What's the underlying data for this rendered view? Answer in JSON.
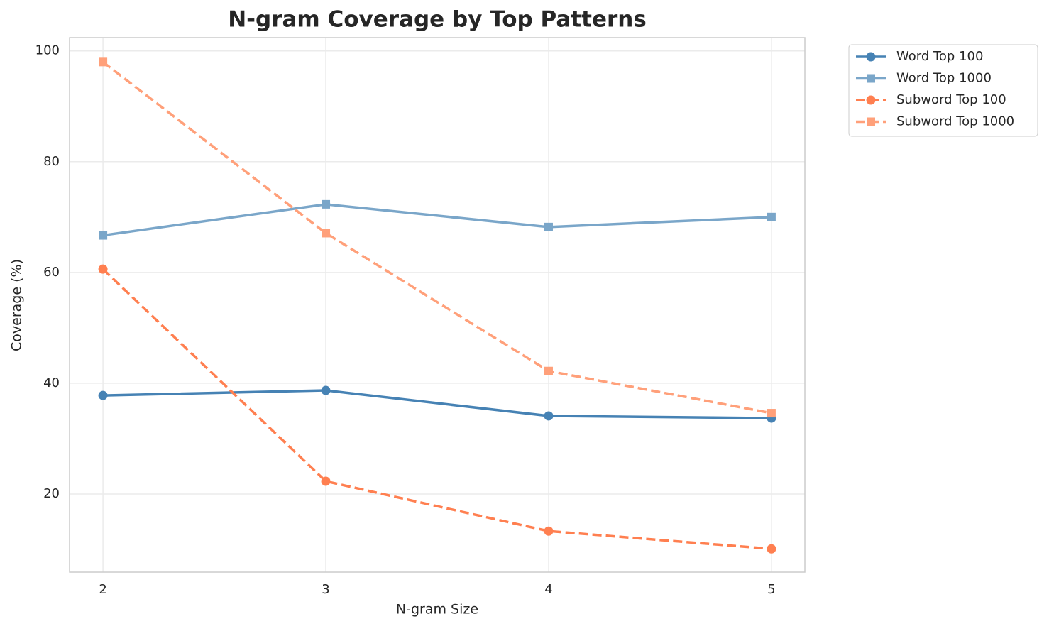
{
  "chart_data": {
    "type": "line",
    "title": "N-gram Coverage by Top Patterns",
    "xlabel": "N-gram Size",
    "ylabel": "Coverage (%)",
    "x": [
      2,
      3,
      4,
      5
    ],
    "series": [
      {
        "name": "Word Top 100",
        "color": "#4682b4",
        "linestyle": "solid",
        "marker": "circle",
        "values": [
          37.8,
          38.7,
          34.1,
          33.7
        ]
      },
      {
        "name": "Word Top 1000",
        "color": "#7aa6c9",
        "linestyle": "solid",
        "marker": "square",
        "values": [
          66.7,
          72.3,
          68.2,
          70.0
        ]
      },
      {
        "name": "Subword Top 100",
        "color": "#ff7f50",
        "linestyle": "dashed",
        "marker": "circle",
        "values": [
          60.6,
          22.3,
          13.3,
          10.1
        ]
      },
      {
        "name": "Subword Top 1000",
        "color": "#ffa07a",
        "linestyle": "dashed",
        "marker": "square",
        "values": [
          98.0,
          67.1,
          42.2,
          34.6
        ]
      }
    ],
    "xlim": [
      1.85,
      5.15
    ],
    "ylim": [
      5.9,
      102.4
    ],
    "xticks": [
      2,
      3,
      4,
      5
    ],
    "yticks": [
      20,
      40,
      60,
      80,
      100
    ],
    "grid": true,
    "legend": "outside upper right"
  }
}
